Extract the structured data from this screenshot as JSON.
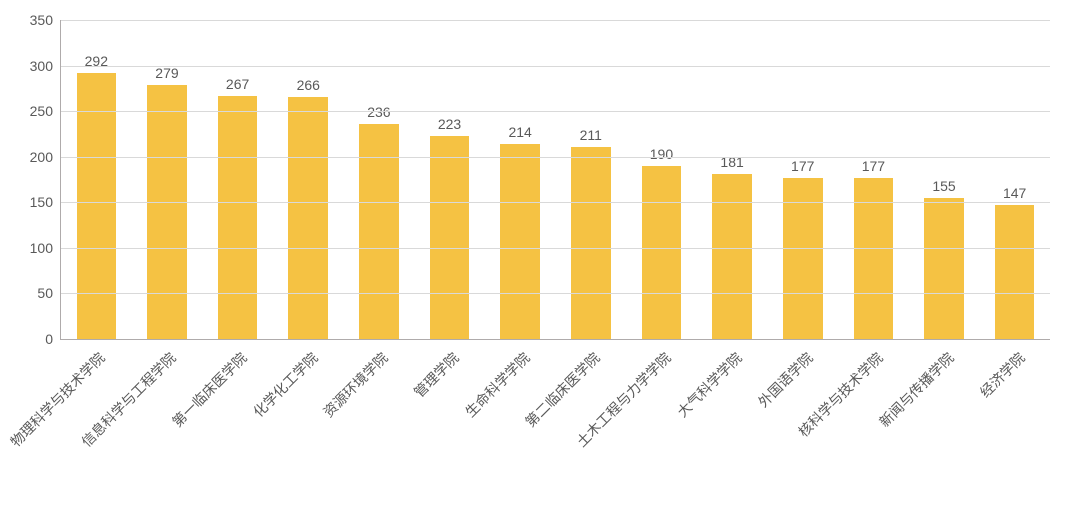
{
  "chart": {
    "type": "bar",
    "background_color": "#ffffff",
    "grid_color": "#d9d9d9",
    "axis_color": "#afabab",
    "tick_label_color": "#595959",
    "tick_fontsize": 14,
    "value_label_color": "#595959",
    "value_label_fontsize": 14,
    "xlabel_color": "#595959",
    "xlabel_fontsize": 14,
    "xlabel_rotation_deg": -45,
    "bar_color": "#f5c243",
    "bar_width_ratio": 0.56,
    "ylim": [
      0,
      350
    ],
    "ytick_step": 50,
    "yticks": [
      "0",
      "50",
      "100",
      "150",
      "200",
      "250",
      "300",
      "350"
    ],
    "categories": [
      "物理科学与技术学院",
      "信息科学与工程学院",
      "第一临床医学院",
      "化学化工学院",
      "资源环境学院",
      "管理学院",
      "生命科学学院",
      "第二临床医学院",
      "土木工程与力学学院",
      "大气科学学院",
      "外国语学院",
      "核科学与技术学院",
      "新闻与传播学院",
      "经济学院"
    ],
    "values": [
      292,
      279,
      267,
      266,
      236,
      223,
      214,
      211,
      190,
      181,
      177,
      177,
      155,
      147
    ],
    "value_labels": [
      "292",
      "279",
      "267",
      "266",
      "236",
      "223",
      "214",
      "211",
      "190",
      "181",
      "177",
      "177",
      "155",
      "147"
    ]
  }
}
